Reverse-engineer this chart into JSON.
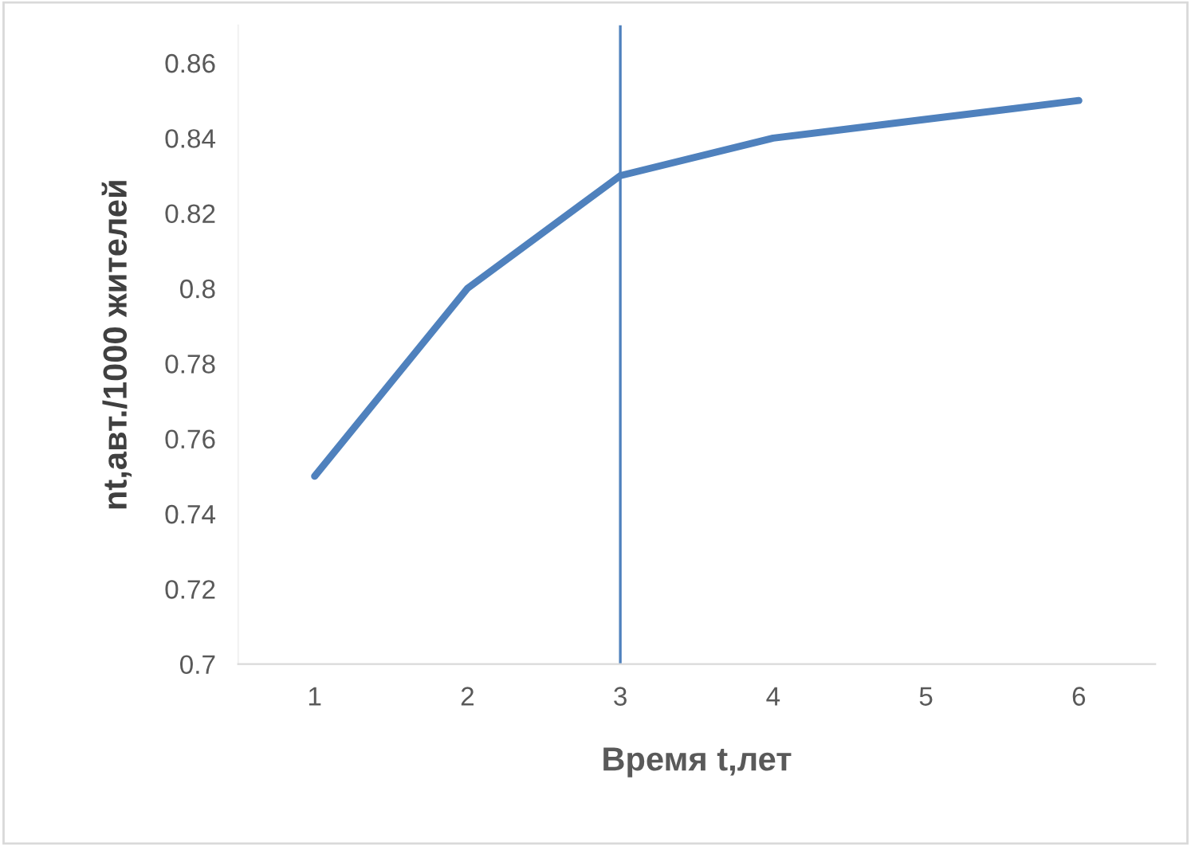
{
  "chart_data": {
    "type": "line",
    "xlabel": "Время t,лет",
    "ylabel": "nt,авт./1000 жителей",
    "x": [
      1,
      2,
      3,
      4,
      5,
      6
    ],
    "series": [
      {
        "color": "#4f81bd",
        "values": [
          0.75,
          0.8,
          0.83,
          0.84,
          0.845,
          0.85
        ]
      }
    ],
    "xlim": [
      0.5,
      6.5
    ],
    "xticks": [
      1,
      2,
      3,
      4,
      5,
      6
    ],
    "ylim": [
      0.7,
      0.87
    ],
    "yticks": [
      0.7,
      0.72,
      0.74,
      0.76,
      0.78,
      0.8,
      0.82,
      0.84,
      0.86
    ],
    "ref_lines": [
      {
        "axis": "x",
        "value": 3,
        "color": "#4f81bd",
        "line_style": "solid"
      }
    ],
    "grid": false,
    "legend": false,
    "marker": "none",
    "line_style": "solid"
  }
}
